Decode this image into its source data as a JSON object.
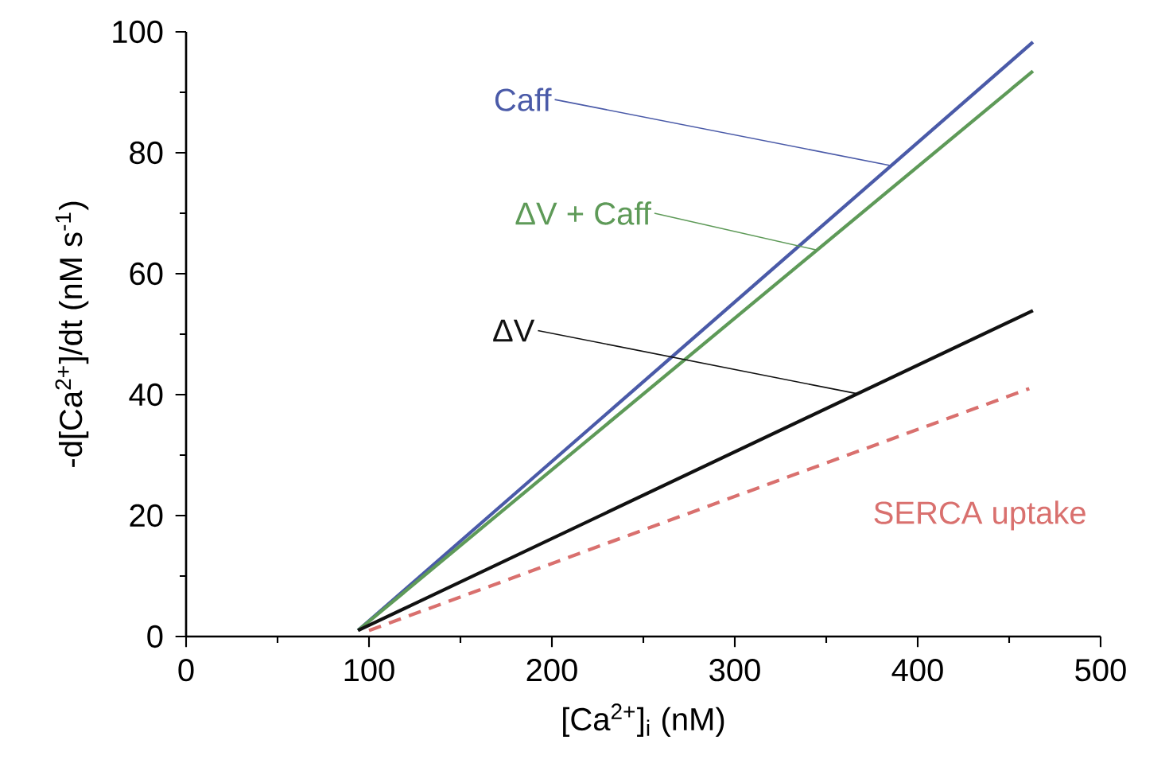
{
  "chart_data": {
    "type": "line",
    "xlabel": "[Ca$^{2+}$]$_{i}$ (nM)",
    "ylabel": "-d[Ca$^{2+}$]/dt (nM s$^{-1}$)",
    "xlim": [
      0,
      500
    ],
    "xticks": [
      0,
      100,
      200,
      300,
      400,
      500
    ],
    "ylim": [
      0,
      100
    ],
    "yticks": [
      0,
      20,
      40,
      60,
      80,
      100
    ],
    "grid": false,
    "legend": false,
    "marker": "none",
    "series": [
      {
        "name": "Caff",
        "color": "#4a5aa8",
        "x": [
          94,
          463
        ],
        "values": [
          1,
          98.3
        ],
        "line_style": "solid"
      },
      {
        "name": "ΔV + Caff",
        "color": "#5e9a58",
        "x": [
          94,
          463
        ],
        "values": [
          1,
          93.5
        ],
        "line_style": "solid"
      },
      {
        "name": "ΔV",
        "color": "#111111",
        "x": [
          94,
          463
        ],
        "values": [
          1,
          53.9
        ],
        "line_style": "solid"
      },
      {
        "name": "SERCA uptake",
        "color": "#d9706e",
        "x": [
          100,
          461
        ],
        "values": [
          1,
          41
        ],
        "line_style": "dashed"
      }
    ]
  }
}
